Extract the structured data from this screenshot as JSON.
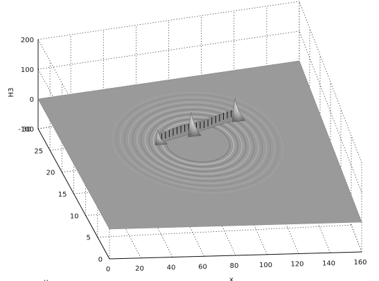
{
  "chart_data": {
    "type": "surface",
    "title": "",
    "xlabel": "x",
    "ylabel": "y",
    "zlabel": "H3",
    "xlim": [
      0,
      160
    ],
    "ylim": [
      0,
      30
    ],
    "zlim": [
      -100,
      200
    ],
    "x_ticks": [
      "0",
      "20",
      "40",
      "60",
      "80",
      "100",
      "120",
      "140",
      "160"
    ],
    "y_ticks": [
      "0",
      "5",
      "10",
      "15",
      "20",
      "25",
      "30"
    ],
    "z_ticks": [
      "-100",
      "0",
      "100",
      "200"
    ],
    "grid": true,
    "shading": "gray",
    "surface_color": "#9a9a9a",
    "features": {
      "baseline_z": 0,
      "ring_center": [
        80,
        17
      ],
      "ring_radius_x": 35,
      "ring_radius_y": 7,
      "peaks": [
        {
          "x": 80,
          "y": 20,
          "z": 55
        },
        {
          "x": 110,
          "y": 22,
          "z": 50
        },
        {
          "x": 58,
          "y": 19,
          "z": 25
        }
      ]
    }
  }
}
